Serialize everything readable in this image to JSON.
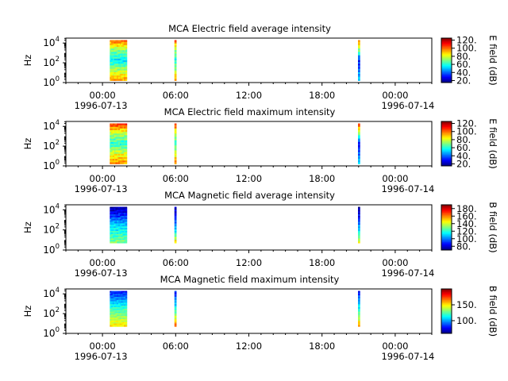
{
  "chart_data": [
    {
      "type": "heatmap",
      "title": "MCA  Electric field average intensity",
      "ylabel": "Hz",
      "ylim_log10": [
        0,
        4.5
      ],
      "y_ticks": [
        {
          "base": "10",
          "exp": "0"
        },
        {
          "base": "10",
          "exp": "2"
        },
        {
          "base": "10",
          "exp": "4"
        }
      ],
      "xlim_hours": [
        -3,
        27
      ],
      "x_ticks": [
        {
          "hour": 0,
          "label": "00:00"
        },
        {
          "hour": 6,
          "label": "06:00"
        },
        {
          "hour": 12,
          "label": "12:00"
        },
        {
          "hour": 18,
          "label": "18:00"
        },
        {
          "hour": 24,
          "label": "00:00"
        }
      ],
      "date_start": "1996-07-13",
      "date_end": "1996-07-14",
      "colorbar": {
        "label": "E field (dB)",
        "min": 15,
        "max": 125,
        "ticks": [
          20,
          40,
          60,
          80,
          100,
          120
        ],
        "tick_labels": [
          "20.",
          "40.",
          "60.",
          "80.",
          "100.",
          "120."
        ]
      },
      "data_segments": [
        {
          "start_hour": 0.6,
          "end_hour": 2.0,
          "ylow_log10": 0.2,
          "yhigh_log10": 4.3,
          "dominant_db": [
            95,
            75,
            55,
            70,
            100
          ]
        },
        {
          "start_hour": 5.9,
          "end_hour": 6.05,
          "ylow_log10": 0.2,
          "yhigh_log10": 4.3,
          "dominant_db": [
            95,
            75,
            60,
            70,
            100
          ]
        },
        {
          "start_hour": 20.95,
          "end_hour": 21.1,
          "ylow_log10": 0.2,
          "yhigh_log10": 4.3,
          "dominant_db": [
            50,
            40,
            30,
            70,
            100
          ]
        }
      ]
    },
    {
      "type": "heatmap",
      "title": "MCA  Electric field maximum intensity",
      "ylabel": "Hz",
      "ylim_log10": [
        0,
        4.5
      ],
      "y_ticks": [
        {
          "base": "10",
          "exp": "0"
        },
        {
          "base": "10",
          "exp": "2"
        },
        {
          "base": "10",
          "exp": "4"
        }
      ],
      "xlim_hours": [
        -3,
        27
      ],
      "x_ticks": [
        {
          "hour": 0,
          "label": "00:00"
        },
        {
          "hour": 6,
          "label": "06:00"
        },
        {
          "hour": 12,
          "label": "12:00"
        },
        {
          "hour": 18,
          "label": "18:00"
        },
        {
          "hour": 24,
          "label": "00:00"
        }
      ],
      "date_start": "1996-07-13",
      "date_end": "1996-07-14",
      "colorbar": {
        "label": "E field (dB)",
        "min": 15,
        "max": 125,
        "ticks": [
          20,
          40,
          60,
          80,
          100,
          120
        ],
        "tick_labels": [
          "20.",
          "40.",
          "60.",
          "80.",
          "100.",
          "120."
        ]
      },
      "data_segments": [
        {
          "start_hour": 0.6,
          "end_hour": 2.0,
          "ylow_log10": 0.2,
          "yhigh_log10": 4.3,
          "dominant_db": [
            95,
            80,
            60,
            75,
            105
          ]
        },
        {
          "start_hour": 5.9,
          "end_hour": 6.05,
          "ylow_log10": 0.2,
          "yhigh_log10": 4.3,
          "dominant_db": [
            95,
            80,
            60,
            75,
            105
          ]
        },
        {
          "start_hour": 20.95,
          "end_hour": 21.1,
          "ylow_log10": 0.2,
          "yhigh_log10": 4.3,
          "dominant_db": [
            50,
            40,
            30,
            70,
            105
          ]
        }
      ]
    },
    {
      "type": "heatmap",
      "title": "MCA  Magnetic field average intensity",
      "ylabel": "Hz",
      "ylim_log10": [
        0,
        4.5
      ],
      "y_ticks": [
        {
          "base": "10",
          "exp": "0"
        },
        {
          "base": "10",
          "exp": "2"
        },
        {
          "base": "10",
          "exp": "4"
        }
      ],
      "xlim_hours": [
        -3,
        27
      ],
      "x_ticks": [
        {
          "hour": 0,
          "label": "00:00"
        },
        {
          "hour": 6,
          "label": "06:00"
        },
        {
          "hour": 12,
          "label": "12:00"
        },
        {
          "hour": 18,
          "label": "18:00"
        },
        {
          "hour": 24,
          "label": "00:00"
        }
      ],
      "date_start": "1996-07-13",
      "date_end": "1996-07-14",
      "colorbar": {
        "label": "B field (dB)",
        "min": 70,
        "max": 190,
        "ticks": [
          80,
          100,
          120,
          140,
          160,
          180
        ],
        "tick_labels": [
          "80.",
          "100.",
          "120.",
          "140.",
          "160.",
          "180."
        ]
      },
      "data_segments": [
        {
          "start_hour": 0.6,
          "end_hour": 2.0,
          "ylow_log10": 0.7,
          "yhigh_log10": 4.3,
          "dominant_db": [
            130,
            120,
            110,
            90,
            75
          ]
        },
        {
          "start_hour": 5.9,
          "end_hour": 6.05,
          "ylow_log10": 0.7,
          "yhigh_log10": 4.3,
          "dominant_db": [
            150,
            120,
            100,
            85,
            75
          ]
        },
        {
          "start_hour": 20.95,
          "end_hour": 21.1,
          "ylow_log10": 0.7,
          "yhigh_log10": 4.3,
          "dominant_db": [
            140,
            120,
            100,
            85,
            75
          ]
        }
      ]
    },
    {
      "type": "heatmap",
      "title": "MCA  Magnetic field maximum intensity",
      "ylabel": "Hz",
      "ylim_log10": [
        0,
        4.5
      ],
      "y_ticks": [
        {
          "base": "10",
          "exp": "0"
        },
        {
          "base": "10",
          "exp": "2"
        },
        {
          "base": "10",
          "exp": "4"
        }
      ],
      "xlim_hours": [
        -3,
        27
      ],
      "x_ticks": [
        {
          "hour": 0,
          "label": "00:00"
        },
        {
          "hour": 6,
          "label": "06:00"
        },
        {
          "hour": 12,
          "label": "12:00"
        },
        {
          "hour": 18,
          "label": "18:00"
        },
        {
          "hour": 24,
          "label": "00:00"
        }
      ],
      "date_start": "1996-07-13",
      "date_end": "1996-07-14",
      "colorbar": {
        "label": "B field (dB)",
        "min": 60,
        "max": 200,
        "ticks": [
          100,
          150
        ],
        "tick_labels": [
          "100.",
          "150."
        ]
      },
      "data_segments": [
        {
          "start_hour": 0.6,
          "end_hour": 2.0,
          "ylow_log10": 0.7,
          "yhigh_log10": 4.3,
          "dominant_db": [
            150,
            135,
            120,
            100,
            80
          ]
        },
        {
          "start_hour": 5.9,
          "end_hour": 6.05,
          "ylow_log10": 0.7,
          "yhigh_log10": 4.3,
          "dominant_db": [
            170,
            140,
            115,
            95,
            80
          ]
        },
        {
          "start_hour": 20.95,
          "end_hour": 21.1,
          "ylow_log10": 0.7,
          "yhigh_log10": 4.3,
          "dominant_db": [
            160,
            135,
            115,
            95,
            80
          ]
        }
      ]
    }
  ]
}
